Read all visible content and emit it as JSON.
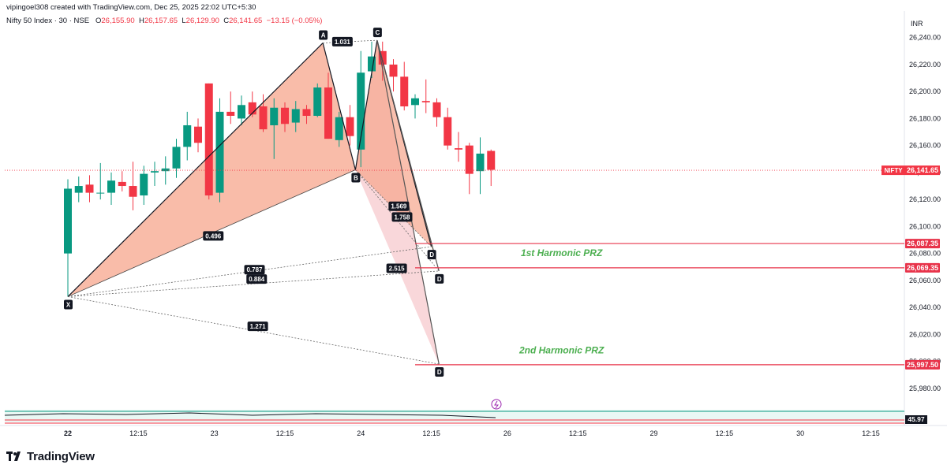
{
  "header": {
    "credit": "vipingoel308 created with TradingView.com, Dec 25, 2025 22:02 UTC+5:30",
    "symbol": "Nifty 50 Index · 30 · NSE",
    "open_label": "O",
    "open": "26,155.90",
    "high_label": "H",
    "high": "26,157.65",
    "low_label": "L",
    "low": "26,129.90",
    "close_label": "C",
    "close": "26,141.65",
    "change": "−13.15 (−0.05%)"
  },
  "currency": "INR",
  "brand": "TradingView",
  "colors": {
    "up": "#089981",
    "down": "#f23645",
    "pattern1": "#f7a58c",
    "pattern2": "#f4b6bc",
    "pattern3": "#f2d3a6",
    "prz_line": "#e8334a",
    "prz_text": "#4caf50",
    "axis_text": "#131722"
  },
  "chart_data": {
    "type": "candlestick",
    "symbol": "Nifty 50 Index",
    "interval": "30",
    "y_range": [
      25970,
      26255
    ],
    "y_ticks": [
      25980,
      26000,
      26020,
      26040,
      26060,
      26080,
      26100,
      26120,
      26140,
      26160,
      26180,
      26200,
      26220,
      26240
    ],
    "y_tick_labels": [
      "25,980.00",
      "26,000.00",
      "26,020.00",
      "26,040.00",
      "26,060.00",
      "26,080.00",
      "26,100.00",
      "26,120.00",
      "26,140.00",
      "26,160.00",
      "26,180.00",
      "26,200.00",
      "26,220.00",
      "26,240.00"
    ],
    "x_labels": [
      {
        "label": "22",
        "bar": 0,
        "bold": true
      },
      {
        "label": "12:15",
        "bar": 6.5
      },
      {
        "label": "23",
        "bar": 13.5
      },
      {
        "label": "12:15",
        "bar": 20
      },
      {
        "label": "24",
        "bar": 27
      },
      {
        "label": "12:15",
        "bar": 33.5
      },
      {
        "label": "26",
        "bar": 40.5
      },
      {
        "label": "12:15",
        "bar": 47
      },
      {
        "label": "29",
        "bar": 54
      },
      {
        "label": "12:15",
        "bar": 60.5
      },
      {
        "label": "30",
        "bar": 67.5
      },
      {
        "label": "12:15",
        "bar": 74
      }
    ],
    "candles": [
      {
        "o": 26080,
        "h": 26135,
        "l": 26048,
        "c": 26128
      },
      {
        "o": 26125,
        "h": 26137,
        "l": 26118,
        "c": 26130
      },
      {
        "o": 26131,
        "h": 26138,
        "l": 26118,
        "c": 26125
      },
      {
        "o": 26125,
        "h": 26147,
        "l": 26120,
        "c": 26125
      },
      {
        "o": 26125,
        "h": 26140,
        "l": 26116,
        "c": 26134
      },
      {
        "o": 26133,
        "h": 26141,
        "l": 26126,
        "c": 26130
      },
      {
        "o": 26130,
        "h": 26148,
        "l": 26112,
        "c": 26122
      },
      {
        "o": 26123,
        "h": 26145,
        "l": 26116,
        "c": 26139
      },
      {
        "o": 26140,
        "h": 26148,
        "l": 26130,
        "c": 26141
      },
      {
        "o": 26141,
        "h": 26152,
        "l": 26131,
        "c": 26143
      },
      {
        "o": 26143,
        "h": 26165,
        "l": 26136,
        "c": 26159
      },
      {
        "o": 26159,
        "h": 26185,
        "l": 26149,
        "c": 26175
      },
      {
        "o": 26174,
        "h": 26180,
        "l": 26155,
        "c": 26162
      },
      {
        "o": 26206,
        "h": 26206,
        "l": 26120,
        "c": 26123
      },
      {
        "o": 26125,
        "h": 26195,
        "l": 26118,
        "c": 26185
      },
      {
        "o": 26185,
        "h": 26200,
        "l": 26176,
        "c": 26182
      },
      {
        "o": 26180,
        "h": 26197,
        "l": 26175,
        "c": 26190
      },
      {
        "o": 26192,
        "h": 26200,
        "l": 26181,
        "c": 26183
      },
      {
        "o": 26189,
        "h": 26198,
        "l": 26170,
        "c": 26172
      },
      {
        "o": 26175,
        "h": 26195,
        "l": 26150,
        "c": 26188
      },
      {
        "o": 26188,
        "h": 26192,
        "l": 26170,
        "c": 26176
      },
      {
        "o": 26177,
        "h": 26193,
        "l": 26170,
        "c": 26187
      },
      {
        "o": 26187,
        "h": 26190,
        "l": 26176,
        "c": 26182
      },
      {
        "o": 26182,
        "h": 26206,
        "l": 26181,
        "c": 26203
      },
      {
        "o": 26203,
        "h": 26214,
        "l": 26165,
        "c": 26165
      },
      {
        "o": 26164,
        "h": 26185,
        "l": 26159,
        "c": 26181
      },
      {
        "o": 26181,
        "h": 26190,
        "l": 26160,
        "c": 26167
      },
      {
        "o": 26157,
        "h": 26230,
        "l": 26144,
        "c": 26214
      },
      {
        "o": 26215,
        "h": 26237,
        "l": 26210,
        "c": 26226
      },
      {
        "o": 26230,
        "h": 26237,
        "l": 26208,
        "c": 26220
      },
      {
        "o": 26220,
        "h": 26224,
        "l": 26200,
        "c": 26211
      },
      {
        "o": 26211,
        "h": 26222,
        "l": 26186,
        "c": 26189
      },
      {
        "o": 26190,
        "h": 26198,
        "l": 26180,
        "c": 26195
      },
      {
        "o": 26193,
        "h": 26209,
        "l": 26184,
        "c": 26192
      },
      {
        "o": 26192,
        "h": 26195,
        "l": 26174,
        "c": 26181
      },
      {
        "o": 26181,
        "h": 26188,
        "l": 26157,
        "c": 26160
      },
      {
        "o": 26158,
        "h": 26170,
        "l": 26148,
        "c": 26157
      },
      {
        "o": 26160,
        "h": 26162,
        "l": 26124,
        "c": 26139
      },
      {
        "o": 26141,
        "h": 26166,
        "l": 26124,
        "c": 26154
      },
      {
        "o": 26156,
        "h": 26157,
        "l": 26130,
        "c": 26142
      }
    ],
    "pivots": [
      {
        "label": "X",
        "bar": 0,
        "price": 26048
      },
      {
        "label": "A",
        "bar": 23.5,
        "price": 26236
      },
      {
        "label": "B",
        "bar": 26.5,
        "price": 26142
      },
      {
        "label": "C",
        "bar": 28.5,
        "price": 26238
      },
      {
        "label": "D",
        "bar": 33.5,
        "price": 26085
      },
      {
        "label": "D",
        "bar": 34.2,
        "price": 26067
      },
      {
        "label": "D",
        "bar": 34.2,
        "price": 25998
      }
    ],
    "ratios": [
      {
        "label": "1.031",
        "bar": 25.3,
        "price": 26237
      },
      {
        "label": "0.496",
        "bar": 13.4,
        "price": 26093
      },
      {
        "label": "1.569",
        "bar": 30.5,
        "price": 26115
      },
      {
        "label": "1.758",
        "bar": 30.8,
        "price": 26107
      },
      {
        "label": "0.787",
        "bar": 17.2,
        "price": 26068
      },
      {
        "label": "0.884",
        "bar": 17.4,
        "price": 26061
      },
      {
        "label": "2.515",
        "bar": 30.3,
        "price": 26069
      },
      {
        "label": "1.271",
        "bar": 17.5,
        "price": 26026
      }
    ],
    "przs": [
      {
        "label": "1st Harmonic PRZ",
        "price": 26087.35,
        "price_label": "26,087.35",
        "from_bar": 32,
        "text_bar": 45.5,
        "text_price": 26078
      },
      {
        "label": "",
        "price": 26069.35,
        "price_label": "26,069.35",
        "from_bar": 32,
        "text_bar": null,
        "text_price": null
      },
      {
        "label": "2nd Harmonic PRZ",
        "price": 25997.5,
        "price_label": "25,997.50",
        "from_bar": 32,
        "text_bar": 45.5,
        "text_price": 26006
      }
    ],
    "current": {
      "label": "NIFTY",
      "price": 26141.65,
      "price_label": "26,141.65"
    },
    "indicator": {
      "value": 45.97,
      "label": "45.97"
    }
  }
}
